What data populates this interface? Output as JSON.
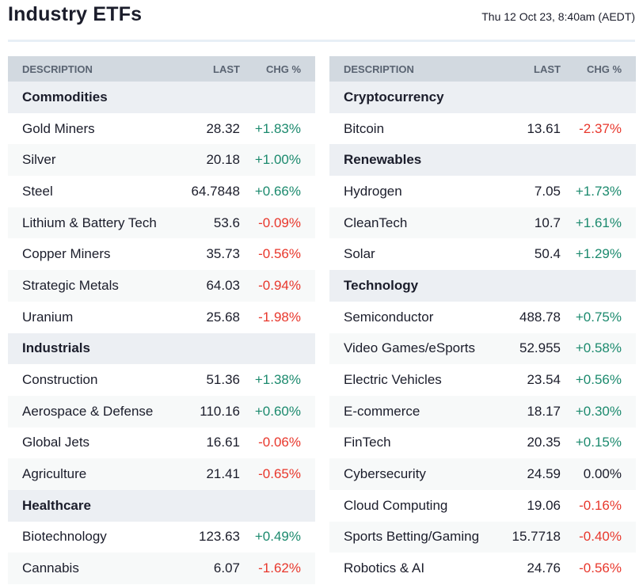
{
  "header": {
    "title": "Industry ETFs",
    "timestamp": "Thu 12 Oct 23, 8:40am (AEDT)"
  },
  "columns": {
    "description": "DESCRIPTION",
    "last": "LAST",
    "chg": "CHG %"
  },
  "colors": {
    "up": "#1c8a6e",
    "down": "#e8372c"
  },
  "left": [
    {
      "category": "Commodities",
      "items": [
        [
          "Gold Miners",
          "28.32",
          "+1.83%"
        ],
        [
          "Silver",
          "20.18",
          "+1.00%"
        ],
        [
          "Steel",
          "64.7848",
          "+0.66%"
        ],
        [
          "Lithium & Battery Tech",
          "53.6",
          "-0.09%"
        ],
        [
          "Copper Miners",
          "35.73",
          "-0.56%"
        ],
        [
          "Strategic Metals",
          "64.03",
          "-0.94%"
        ],
        [
          "Uranium",
          "25.68",
          "-1.98%"
        ]
      ]
    },
    {
      "category": "Industrials",
      "items": [
        [
          "Construction",
          "51.36",
          "+1.38%"
        ],
        [
          "Aerospace & Defense",
          "110.16",
          "+0.60%"
        ],
        [
          "Global Jets",
          "16.61",
          "-0.06%"
        ],
        [
          "Agriculture",
          "21.41",
          "-0.65%"
        ]
      ]
    },
    {
      "category": "Healthcare",
      "items": [
        [
          "Biotechnology",
          "123.63",
          "+0.49%"
        ],
        [
          "Cannabis",
          "6.07",
          "-1.62%"
        ]
      ]
    }
  ],
  "right": [
    {
      "category": "Cryptocurrency",
      "items": [
        [
          "Bitcoin",
          "13.61",
          "-2.37%"
        ]
      ]
    },
    {
      "category": "Renewables",
      "items": [
        [
          "Hydrogen",
          "7.05",
          "+1.73%"
        ],
        [
          "CleanTech",
          "10.7",
          "+1.61%"
        ],
        [
          "Solar",
          "50.4",
          "+1.29%"
        ]
      ]
    },
    {
      "category": "Technology",
      "items": [
        [
          "Semiconductor",
          "488.78",
          "+0.75%"
        ],
        [
          "Video Games/eSports",
          "52.955",
          "+0.58%"
        ],
        [
          "Electric Vehicles",
          "23.54",
          "+0.56%"
        ],
        [
          "E-commerce",
          "18.17",
          "+0.30%"
        ],
        [
          "FinTech",
          "20.35",
          "+0.15%"
        ],
        [
          "Cybersecurity",
          "24.59",
          "0.00%"
        ],
        [
          "Cloud Computing",
          "19.06",
          "-0.16%"
        ],
        [
          "Sports Betting/Gaming",
          "15.7718",
          "-0.40%"
        ],
        [
          "Robotics & AI",
          "24.76",
          "-0.56%"
        ]
      ]
    }
  ]
}
